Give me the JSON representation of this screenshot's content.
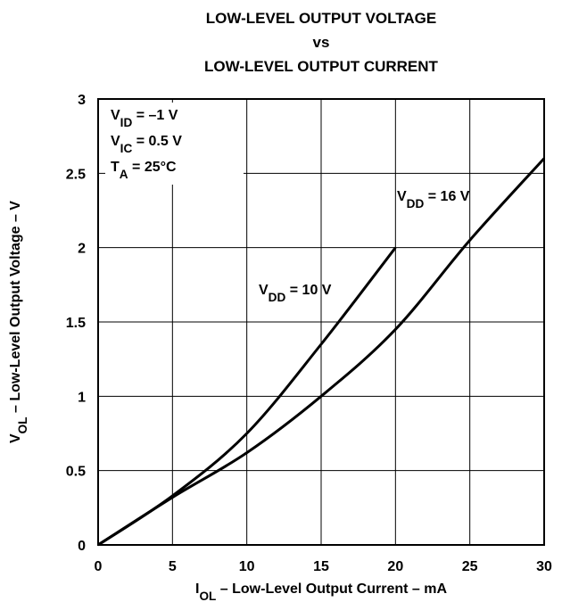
{
  "chart_data": {
    "type": "line",
    "title": [
      "LOW-LEVEL OUTPUT VOLTAGE",
      "vs",
      "LOW-LEVEL OUTPUT CURRENT"
    ],
    "x_label": {
      "main": "I",
      "sub": "OL",
      "rest": " – Low-Level Output Current – mA"
    },
    "y_label": {
      "main": "V",
      "sub": "OL",
      "rest": " – Low-Level Output Voltage – V"
    },
    "annotations": [
      {
        "main": "V",
        "sub": "ID",
        "rest": " = –1 V"
      },
      {
        "main": "V",
        "sub": "IC",
        "rest": " = 0.5 V"
      },
      {
        "main": "T",
        "sub": "A",
        "rest": " = 25°C"
      }
    ],
    "xlim": [
      0,
      30
    ],
    "xticks": [
      0,
      5,
      10,
      15,
      20,
      25,
      30
    ],
    "ylim": [
      0,
      3
    ],
    "yticks": [
      0,
      0.5,
      1,
      1.5,
      2,
      2.5,
      3
    ],
    "grid": true,
    "series": [
      {
        "name": {
          "main": "V",
          "sub": "DD",
          "rest": " = 10 V"
        },
        "color": "#000000",
        "x": [
          0,
          5,
          10,
          15,
          20
        ],
        "values": [
          0,
          0.33,
          0.75,
          1.35,
          2.0
        ]
      },
      {
        "name": {
          "main": "V",
          "sub": "DD",
          "rest": " = 16 V"
        },
        "color": "#000000",
        "x": [
          0,
          5,
          10,
          15,
          20,
          25,
          30
        ],
        "values": [
          0,
          0.32,
          0.62,
          1.0,
          1.45,
          2.05,
          2.6
        ]
      }
    ]
  }
}
